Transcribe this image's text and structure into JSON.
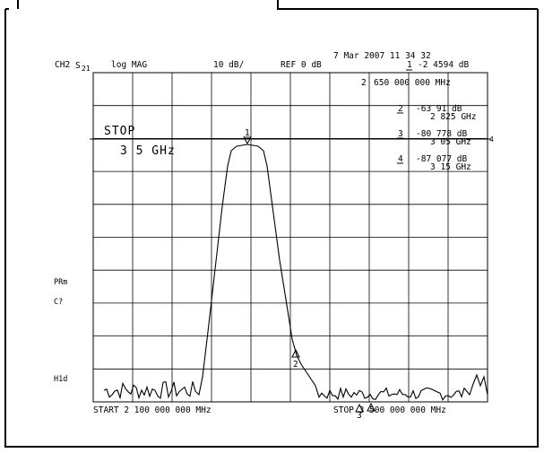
{
  "header": {
    "timestamp": "7 Mar 2007  11 34 32",
    "channel": "CH2",
    "param": "S",
    "param_sub": "21",
    "format": "log MAG",
    "scale": "10 dB/",
    "reference": "REF 0 dB",
    "marker_active_num": "1",
    "marker_active_val": "-2 4594 dB",
    "marker_active_freq_num": "2",
    "marker_active_freq": "650 000 000 MHz"
  },
  "marker_table": [
    {
      "num": "2",
      "db": "-63 91  dB",
      "freq": "2 825 GHz"
    },
    {
      "num": "3",
      "db": "-80 778 dB",
      "freq": "3 05 GHz"
    },
    {
      "num": "4",
      "db": "-87 077 dB",
      "freq": "3 15 GHz"
    }
  ],
  "entry": {
    "label": "STOP",
    "value": "3 5 GHz"
  },
  "side_labels": {
    "pram": "PRm",
    "cq": "C?",
    "hld": "H1d"
  },
  "footer": {
    "start": "START 2 100 000 000 MHz",
    "stop": "STOP 3 500 000 000 MHz"
  },
  "markers_on_trace": [
    "1",
    "2",
    "3",
    "4"
  ],
  "colors": {
    "trace": "#000000",
    "grid": "#000000",
    "background": "#ffffff"
  }
}
